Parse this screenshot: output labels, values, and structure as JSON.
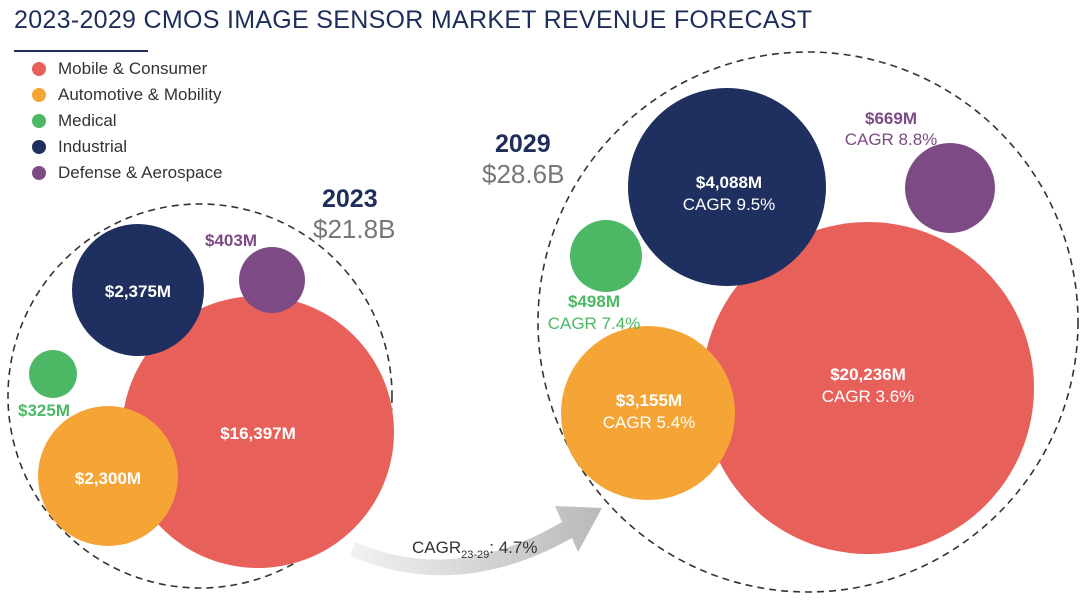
{
  "header": {
    "title": "2023-2029 CMOS IMAGE SENSOR MARKET REVENUE FORECAST"
  },
  "legend": [
    {
      "label": "Mobile & Consumer",
      "color": "#e8605a"
    },
    {
      "label": "Automotive & Mobility",
      "color": "#f4a536"
    },
    {
      "label": "Medical",
      "color": "#4cb865"
    },
    {
      "label": "Industrial",
      "color": "#1f2f5f"
    },
    {
      "label": "Defense & Aerospace",
      "color": "#7d4a86"
    }
  ],
  "chart_data": {
    "type": "bubble",
    "groups": [
      {
        "year": "2023",
        "total": "$21.8B",
        "segments": [
          {
            "name": "Mobile & Consumer",
            "value": 16397,
            "label": "$16,397M"
          },
          {
            "name": "Industrial",
            "value": 2375,
            "label": "$2,375M"
          },
          {
            "name": "Automotive & Mobility",
            "value": 2300,
            "label": "$2,300M"
          },
          {
            "name": "Defense & Aerospace",
            "value": 403,
            "label": "$403M"
          },
          {
            "name": "Medical",
            "value": 325,
            "label": "$325M"
          }
        ]
      },
      {
        "year": "2029",
        "total": "$28.6B",
        "segments": [
          {
            "name": "Mobile & Consumer",
            "value": 20236,
            "label": "$20,236M",
            "cagr": "CAGR 3.6%"
          },
          {
            "name": "Industrial",
            "value": 4088,
            "label": "$4,088M",
            "cagr": "CAGR 9.5%"
          },
          {
            "name": "Automotive & Mobility",
            "value": 3155,
            "label": "$3,155M",
            "cagr": "CAGR 5.4%"
          },
          {
            "name": "Defense & Aerospace",
            "value": 669,
            "label": "$669M",
            "cagr": "CAGR 8.8%"
          },
          {
            "name": "Medical",
            "value": 498,
            "label": "$498M",
            "cagr": "CAGR 7.4%"
          }
        ]
      }
    ],
    "growth": {
      "prefix": "CAGR",
      "subscript": "23-29",
      "value": ": 4.7%"
    }
  }
}
